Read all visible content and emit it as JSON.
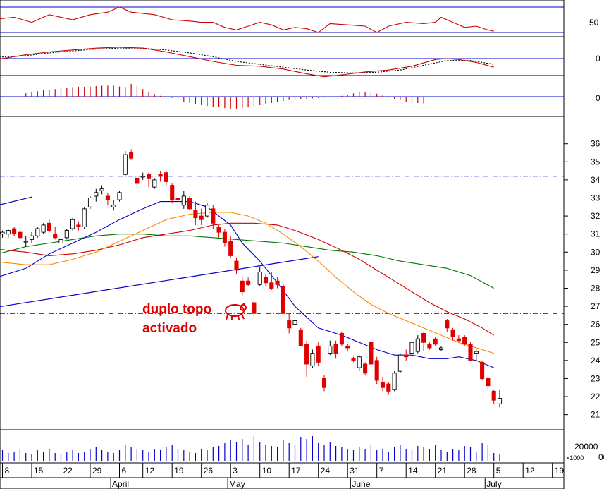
{
  "chart_data": {
    "type": "candlestick",
    "colors": {
      "up": "#ffffff",
      "down": "#e00000",
      "ma_fast": "#0000cc",
      "ma_mid": "#ff8800",
      "ma_slow": "#cc0000",
      "ma_long": "#007700",
      "trendline": "#0000cc",
      "volume": "#0000cc",
      "rsi": "#cc0000",
      "macd": "#cc0000",
      "signal": "#000000",
      "hist": "#cc0000",
      "level": "#0000cc"
    },
    "x_axis": {
      "day_labels": [
        {
          "label": "8",
          "i": 0
        },
        {
          "label": "15",
          "i": 5
        },
        {
          "label": "22",
          "i": 10
        },
        {
          "label": "29",
          "i": 15
        },
        {
          "label": "6",
          "i": 20
        },
        {
          "label": "12",
          "i": 24
        },
        {
          "label": "19",
          "i": 29
        },
        {
          "label": "26",
          "i": 34
        },
        {
          "label": "3",
          "i": 39
        },
        {
          "label": "10",
          "i": 44
        },
        {
          "label": "17",
          "i": 49
        },
        {
          "label": "24",
          "i": 54
        },
        {
          "label": "31",
          "i": 59
        },
        {
          "label": "7",
          "i": 64
        },
        {
          "label": "14",
          "i": 69
        },
        {
          "label": "21",
          "i": 74
        },
        {
          "label": "28",
          "i": 79
        },
        {
          "label": "5",
          "i": 84
        },
        {
          "label": "12",
          "i": 89
        },
        {
          "label": "19",
          "i": 94
        }
      ],
      "month_labels": [
        {
          "label": "April",
          "i": 18.5
        },
        {
          "label": "May",
          "i": 38.5
        },
        {
          "label": "June",
          "i": 59.5
        },
        {
          "label": "July",
          "i": 82.5
        }
      ]
    },
    "price_axis": {
      "ticks": [
        21,
        22,
        23,
        24,
        25,
        26,
        27,
        28,
        29,
        30,
        31,
        32,
        33,
        34,
        35,
        36
      ],
      "min": 20.4,
      "max": 37.2
    },
    "rsi_axis": {
      "ticks": [
        "50"
      ],
      "level_upper": 70,
      "level_lower": 50
    },
    "macd_axis": {
      "ticks": [
        "0"
      ]
    },
    "hist_axis": {
      "ticks": [
        "0"
      ]
    },
    "volume_axis": {
      "ticks": [
        "20000"
      ],
      "unit": "x1000"
    },
    "resistance_levels": [
      34.2,
      26.6
    ],
    "trendline": {
      "from": {
        "i": -2,
        "v": 26.9
      },
      "to": {
        "i": 54,
        "v": 29.75
      }
    },
    "upper_trendline": {
      "from": {
        "i": -2,
        "v": 32.5
      },
      "to": {
        "i": 5,
        "v": 33.05
      }
    },
    "annotation": [
      "duplo topo",
      "activado"
    ],
    "ohlc": [
      [
        31.0,
        31.2,
        30.8,
        31.1
      ],
      [
        31.0,
        31.3,
        30.8,
        31.2
      ],
      [
        31.3,
        31.4,
        30.9,
        31.0
      ],
      [
        31.1,
        31.3,
        30.6,
        30.8
      ],
      [
        30.6,
        30.9,
        30.3,
        30.6
      ],
      [
        30.7,
        31.1,
        30.5,
        30.9
      ],
      [
        30.9,
        31.4,
        30.8,
        31.3
      ],
      [
        31.1,
        31.6,
        31.0,
        31.5
      ],
      [
        31.6,
        31.8,
        31.1,
        31.2
      ],
      [
        31.0,
        31.4,
        30.7,
        30.8
      ],
      [
        30.5,
        31.0,
        30.2,
        30.7
      ],
      [
        30.8,
        31.3,
        30.7,
        31.2
      ],
      [
        31.3,
        31.9,
        31.2,
        31.8
      ],
      [
        31.5,
        31.7,
        31.2,
        31.4
      ],
      [
        31.4,
        32.5,
        31.3,
        32.4
      ],
      [
        32.5,
        33.1,
        32.4,
        33.0
      ],
      [
        33.1,
        33.5,
        32.8,
        33.3
      ],
      [
        33.4,
        33.7,
        33.2,
        33.5
      ],
      [
        33.1,
        33.3,
        32.6,
        32.9
      ],
      [
        32.5,
        32.9,
        32.3,
        32.6
      ],
      [
        32.9,
        33.4,
        32.8,
        33.3
      ],
      [
        34.3,
        35.6,
        34.2,
        35.4
      ],
      [
        35.5,
        35.7,
        35.1,
        35.2
      ],
      [
        34.1,
        34.2,
        33.6,
        33.8
      ],
      [
        34.2,
        34.4,
        34.0,
        34.2
      ],
      [
        34.3,
        34.4,
        33.6,
        34.1
      ],
      [
        33.6,
        34.1,
        33.5,
        34.0
      ],
      [
        34.3,
        34.5,
        33.9,
        34.2
      ],
      [
        34.4,
        34.5,
        33.7,
        33.9
      ],
      [
        33.7,
        33.8,
        32.7,
        32.9
      ],
      [
        33.0,
        33.2,
        32.5,
        32.9
      ],
      [
        32.6,
        33.4,
        32.4,
        33.1
      ],
      [
        33.0,
        33.1,
        32.3,
        32.4
      ],
      [
        32.3,
        32.8,
        31.5,
        31.9
      ],
      [
        32.0,
        32.4,
        31.5,
        31.8
      ],
      [
        32.0,
        32.7,
        31.9,
        32.6
      ],
      [
        32.4,
        32.6,
        31.3,
        31.6
      ],
      [
        31.4,
        31.5,
        30.8,
        31.1
      ],
      [
        31.1,
        31.3,
        30.3,
        30.5
      ],
      [
        30.6,
        30.9,
        29.7,
        29.8
      ],
      [
        29.5,
        29.7,
        28.8,
        29.0
      ],
      [
        28.4,
        28.6,
        27.6,
        27.8
      ],
      [
        28.4,
        28.6,
        28.1,
        28.2
      ],
      [
        27.2,
        27.4,
        26.3,
        26.6
      ],
      [
        28.2,
        29.2,
        28.1,
        28.9
      ],
      [
        28.6,
        28.8,
        28.1,
        28.3
      ],
      [
        28.3,
        28.9,
        27.9,
        28.0
      ],
      [
        28.4,
        28.6,
        28.0,
        28.2
      ],
      [
        28.1,
        28.2,
        26.6,
        26.6
      ],
      [
        26.2,
        26.6,
        25.5,
        25.8
      ],
      [
        26.0,
        26.5,
        25.8,
        26.2
      ],
      [
        25.7,
        25.8,
        24.8,
        24.8
      ],
      [
        24.9,
        25.1,
        23.1,
        23.8
      ],
      [
        23.7,
        24.6,
        23.6,
        24.4
      ],
      [
        24.8,
        25.0,
        23.7,
        23.9
      ],
      [
        23.0,
        23.2,
        22.3,
        22.5
      ],
      [
        24.4,
        25.1,
        24.3,
        24.8
      ],
      [
        24.9,
        25.1,
        24.1,
        24.4
      ],
      [
        25.5,
        25.6,
        24.8,
        24.9
      ],
      [
        24.8,
        24.9,
        24.5,
        24.7
      ],
      [
        24.1,
        24.2,
        23.9,
        24.0
      ],
      [
        23.6,
        24.3,
        23.4,
        24.2
      ],
      [
        23.8,
        23.9,
        23.2,
        23.3
      ],
      [
        25.0,
        25.1,
        23.6,
        23.8
      ],
      [
        24.0,
        24.2,
        22.7,
        22.9
      ],
      [
        22.8,
        23.1,
        22.3,
        22.5
      ],
      [
        22.7,
        22.8,
        22.1,
        22.3
      ],
      [
        22.4,
        23.4,
        22.3,
        23.3
      ],
      [
        23.4,
        24.4,
        23.3,
        24.3
      ],
      [
        24.3,
        24.6,
        24.0,
        24.2
      ],
      [
        24.4,
        25.2,
        24.3,
        25.0
      ],
      [
        24.5,
        25.4,
        24.4,
        25.2
      ],
      [
        25.5,
        25.6,
        24.5,
        25.0
      ],
      [
        24.9,
        25.0,
        24.6,
        24.7
      ],
      [
        25.2,
        25.3,
        24.8,
        24.9
      ],
      [
        24.6,
        24.8,
        24.5,
        24.7
      ],
      [
        26.2,
        26.3,
        25.6,
        25.8
      ],
      [
        25.7,
        25.8,
        25.1,
        25.3
      ],
      [
        25.2,
        25.4,
        25.0,
        25.1
      ],
      [
        25.3,
        25.4,
        24.8,
        24.9
      ],
      [
        24.9,
        25.0,
        24.0,
        24.0
      ],
      [
        24.4,
        24.6,
        24.0,
        24.5
      ],
      [
        23.9,
        24.0,
        22.9,
        23.0
      ],
      [
        23.0,
        23.1,
        22.4,
        22.6
      ],
      [
        22.3,
        22.4,
        21.6,
        21.8
      ],
      [
        21.6,
        22.4,
        21.4,
        21.9
      ]
    ],
    "ma_fast": [
      [
        -2,
        28.5
      ],
      [
        4,
        29.1
      ],
      [
        8,
        29.9
      ],
      [
        12,
        30.5
      ],
      [
        16,
        31.1
      ],
      [
        20,
        31.8
      ],
      [
        24,
        32.4
      ],
      [
        27,
        32.8
      ],
      [
        32,
        32.8
      ],
      [
        35,
        32.5
      ],
      [
        37,
        32.0
      ],
      [
        39,
        31.5
      ],
      [
        41,
        30.5
      ],
      [
        44,
        29.5
      ],
      [
        47,
        28.3
      ],
      [
        50,
        27.0
      ],
      [
        54,
        25.8
      ],
      [
        58,
        25.4
      ],
      [
        61,
        25.0
      ],
      [
        64,
        24.6
      ],
      [
        67,
        24.3
      ],
      [
        70,
        24.3
      ],
      [
        73,
        24.1
      ],
      [
        76,
        24.1
      ],
      [
        78,
        24.2
      ],
      [
        81,
        24.0
      ],
      [
        84,
        23.6
      ]
    ],
    "ma_mid": [
      [
        -2,
        29.5
      ],
      [
        4,
        29.3
      ],
      [
        8,
        29.3
      ],
      [
        12,
        29.6
      ],
      [
        16,
        30.0
      ],
      [
        20,
        30.6
      ],
      [
        24,
        31.2
      ],
      [
        28,
        31.8
      ],
      [
        32,
        32.1
      ],
      [
        36,
        32.2
      ],
      [
        39,
        32.2
      ],
      [
        42,
        32.0
      ],
      [
        45,
        31.6
      ],
      [
        48,
        31.0
      ],
      [
        51,
        30.3
      ],
      [
        54,
        29.5
      ],
      [
        57,
        28.6
      ],
      [
        60,
        27.8
      ],
      [
        63,
        27.1
      ],
      [
        66,
        26.6
      ],
      [
        69,
        26.2
      ],
      [
        72,
        25.8
      ],
      [
        75,
        25.4
      ],
      [
        78,
        25.0
      ],
      [
        81,
        24.7
      ],
      [
        84,
        24.4
      ]
    ],
    "ma_slow": [
      [
        -2,
        30.2
      ],
      [
        4,
        30.0
      ],
      [
        8,
        29.8
      ],
      [
        12,
        29.9
      ],
      [
        16,
        30.1
      ],
      [
        20,
        30.4
      ],
      [
        24,
        30.8
      ],
      [
        28,
        31.0
      ],
      [
        32,
        31.2
      ],
      [
        36,
        31.5
      ],
      [
        39,
        31.6
      ],
      [
        43,
        31.6
      ],
      [
        47,
        31.5
      ],
      [
        50,
        31.2
      ],
      [
        54,
        30.7
      ],
      [
        58,
        30.1
      ],
      [
        61,
        29.6
      ],
      [
        64,
        29.0
      ],
      [
        67,
        28.4
      ],
      [
        70,
        27.8
      ],
      [
        73,
        27.2
      ],
      [
        76,
        26.7
      ],
      [
        79,
        26.3
      ],
      [
        82,
        25.8
      ],
      [
        84,
        25.4
      ]
    ],
    "ma_long": [
      [
        -2,
        29.8
      ],
      [
        4,
        30.3
      ],
      [
        8,
        30.5
      ],
      [
        12,
        30.7
      ],
      [
        16,
        30.9
      ],
      [
        20,
        31.0
      ],
      [
        24,
        31.0
      ],
      [
        28,
        30.9
      ],
      [
        32,
        30.9
      ],
      [
        36,
        30.8
      ],
      [
        40,
        30.7
      ],
      [
        44,
        30.6
      ],
      [
        48,
        30.5
      ],
      [
        52,
        30.3
      ],
      [
        56,
        30.1
      ],
      [
        60,
        30.0
      ],
      [
        64,
        29.8
      ],
      [
        68,
        29.5
      ],
      [
        72,
        29.3
      ],
      [
        76,
        29.1
      ],
      [
        80,
        28.7
      ],
      [
        84,
        28.0
      ]
    ],
    "rsi": [
      [
        -2,
        60
      ],
      [
        2,
        62
      ],
      [
        5,
        58
      ],
      [
        8,
        64
      ],
      [
        12,
        60
      ],
      [
        15,
        64
      ],
      [
        18,
        66
      ],
      [
        20,
        70
      ],
      [
        22,
        66
      ],
      [
        26,
        64
      ],
      [
        29,
        60
      ],
      [
        32,
        59
      ],
      [
        34,
        58
      ],
      [
        36,
        58
      ],
      [
        38,
        54
      ],
      [
        40,
        52
      ],
      [
        42,
        55
      ],
      [
        44,
        58
      ],
      [
        46,
        56
      ],
      [
        48,
        52
      ],
      [
        50,
        54
      ],
      [
        52,
        53
      ],
      [
        54,
        50
      ],
      [
        56,
        57
      ],
      [
        59,
        56
      ],
      [
        62,
        55
      ],
      [
        64,
        50
      ],
      [
        66,
        55
      ],
      [
        69,
        58
      ],
      [
        72,
        57
      ],
      [
        74,
        58
      ],
      [
        75,
        62
      ],
      [
        77,
        58
      ],
      [
        79,
        54
      ],
      [
        81,
        55
      ],
      [
        83,
        52
      ],
      [
        84,
        51
      ]
    ],
    "macd": [
      [
        -2,
        -0.1
      ],
      [
        4,
        0.2
      ],
      [
        8,
        0.35
      ],
      [
        12,
        0.45
      ],
      [
        16,
        0.55
      ],
      [
        20,
        0.6
      ],
      [
        24,
        0.55
      ],
      [
        28,
        0.35
      ],
      [
        32,
        0.1
      ],
      [
        36,
        -0.15
      ],
      [
        40,
        -0.35
      ],
      [
        44,
        -0.4
      ],
      [
        48,
        -0.55
      ],
      [
        52,
        -0.8
      ],
      [
        55,
        -0.95
      ],
      [
        58,
        -0.85
      ],
      [
        62,
        -0.7
      ],
      [
        66,
        -0.6
      ],
      [
        70,
        -0.4
      ],
      [
        74,
        -0.05
      ],
      [
        76,
        0.0
      ],
      [
        78,
        -0.05
      ],
      [
        81,
        -0.2
      ],
      [
        84,
        -0.45
      ]
    ],
    "signal": [
      [
        -2,
        0.05
      ],
      [
        4,
        0.15
      ],
      [
        8,
        0.3
      ],
      [
        12,
        0.4
      ],
      [
        16,
        0.5
      ],
      [
        20,
        0.55
      ],
      [
        24,
        0.55
      ],
      [
        28,
        0.45
      ],
      [
        32,
        0.3
      ],
      [
        36,
        0.1
      ],
      [
        40,
        -0.15
      ],
      [
        44,
        -0.3
      ],
      [
        48,
        -0.45
      ],
      [
        52,
        -0.6
      ],
      [
        56,
        -0.72
      ],
      [
        60,
        -0.75
      ],
      [
        64,
        -0.72
      ],
      [
        68,
        -0.6
      ],
      [
        72,
        -0.35
      ],
      [
        76,
        -0.1
      ],
      [
        80,
        -0.1
      ],
      [
        84,
        -0.3
      ]
    ],
    "hist": [
      0.08,
      0.11,
      0.13,
      0.15,
      0.17,
      0.18,
      0.19,
      0.2,
      0.21,
      0.22,
      0.23,
      0.24,
      0.25,
      0.26,
      0.26,
      0.26,
      0.24,
      0.22,
      0.3,
      0.25,
      0.18,
      0.1,
      0.06,
      0.02,
      0.0,
      -0.03,
      -0.07,
      -0.12,
      -0.15,
      -0.18,
      -0.2,
      -0.22,
      -0.24,
      -0.25,
      -0.27,
      -0.28,
      -0.28,
      -0.27,
      -0.25,
      -0.23,
      -0.2,
      -0.18,
      -0.15,
      -0.12,
      -0.1,
      -0.08,
      -0.07,
      -0.06,
      -0.05,
      -0.04,
      -0.03,
      -0.02,
      -0.01,
      0.0,
      0.02,
      0.05,
      0.08,
      0.1,
      0.1,
      0.09,
      0.07,
      0.03,
      -0.02,
      -0.05,
      -0.08,
      -0.12,
      -0.15,
      -0.15,
      -0.16
    ],
    "volume": [
      8,
      6,
      7,
      9,
      6,
      5,
      8,
      7,
      9,
      6,
      5,
      7,
      8,
      6,
      7,
      9,
      10,
      8,
      7,
      6,
      8,
      12,
      10,
      9,
      8,
      7,
      9,
      8,
      10,
      12,
      9,
      8,
      7,
      6,
      9,
      8,
      10,
      11,
      13,
      15,
      14,
      16,
      12,
      18,
      14,
      12,
      11,
      10,
      15,
      13,
      12,
      17,
      16,
      18,
      13,
      12,
      14,
      11,
      10,
      9,
      8,
      10,
      9,
      12,
      8,
      9,
      7,
      10,
      12,
      9,
      8,
      11,
      10,
      9,
      12,
      8,
      7,
      9,
      8,
      11,
      10,
      7,
      13,
      12,
      6,
      5
    ]
  }
}
